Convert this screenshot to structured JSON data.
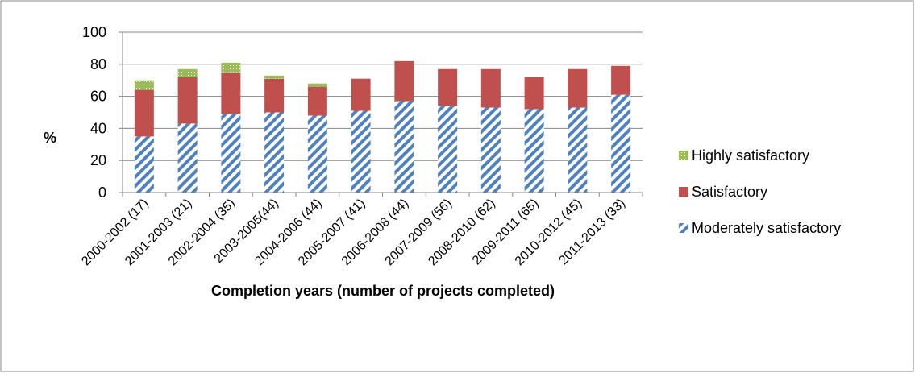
{
  "chart_data": {
    "type": "stacked_bar",
    "y_label": "%",
    "x_label": "Completion years (number of projects completed)",
    "categories": [
      "2000-2002 (17)",
      "2001-2003 (21)",
      "2002-2004 (35)",
      "2003-2005(44)",
      "2004-2006 (44)",
      "2005-2007 (41)",
      "2006-2008 (44)",
      "2007-2009 (56)",
      "2008-2010 (62)",
      "2009-2011 (65)",
      "2010-2012 (45)",
      "2011-2013 (33)"
    ],
    "series": [
      {
        "name": "Moderately satisfactory",
        "color": "#4f81bd",
        "values": [
          35,
          43,
          49,
          50,
          48,
          51,
          57,
          54,
          53,
          52,
          53,
          61
        ]
      },
      {
        "name": "Satisfactory",
        "color": "#c0504d",
        "values": [
          29,
          29,
          26,
          21,
          18,
          20,
          25,
          23,
          24,
          20,
          24,
          18
        ]
      },
      {
        "name": "Highly satisfactory",
        "color": "#9bbb59",
        "values": [
          6,
          5,
          6,
          2,
          2,
          0,
          0,
          0,
          0,
          0,
          0,
          0
        ]
      }
    ],
    "ylim": [
      0,
      100
    ],
    "yticks": [
      0,
      20,
      40,
      60,
      80,
      100
    ],
    "grid": true,
    "legend": "right"
  }
}
